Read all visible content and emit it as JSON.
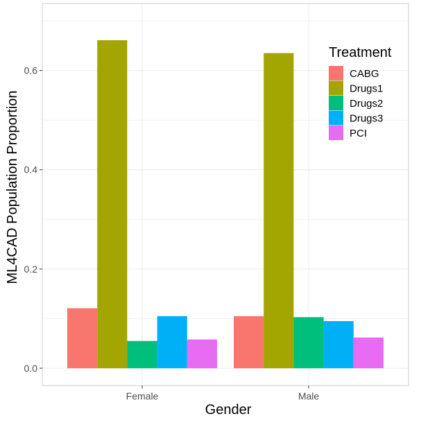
{
  "chart_data": {
    "type": "bar",
    "categories": [
      "Female",
      "Male"
    ],
    "series": [
      {
        "name": "CABG",
        "color": "#F8766D",
        "values": [
          0.121,
          0.105
        ]
      },
      {
        "name": "Drugs1",
        "color": "#A3A500",
        "values": [
          0.661,
          0.635
        ]
      },
      {
        "name": "Drugs2",
        "color": "#00BF7D",
        "values": [
          0.055,
          0.103
        ]
      },
      {
        "name": "Drugs3",
        "color": "#00B0F6",
        "values": [
          0.105,
          0.095
        ]
      },
      {
        "name": "PCI",
        "color": "#E76BF3",
        "values": [
          0.058,
          0.062
        ]
      }
    ],
    "xlabel": "Gender",
    "ylabel": "ML4CAD Population Proportion",
    "ylim": [
      -0.035,
      0.735
    ],
    "yticks": [
      0.0,
      0.2,
      0.4,
      0.6
    ],
    "ytick_labels": [
      "0.0",
      "0.2",
      "0.4",
      "0.6"
    ],
    "grid": true,
    "legend": {
      "title": "Treatment",
      "position": "top-right"
    }
  }
}
